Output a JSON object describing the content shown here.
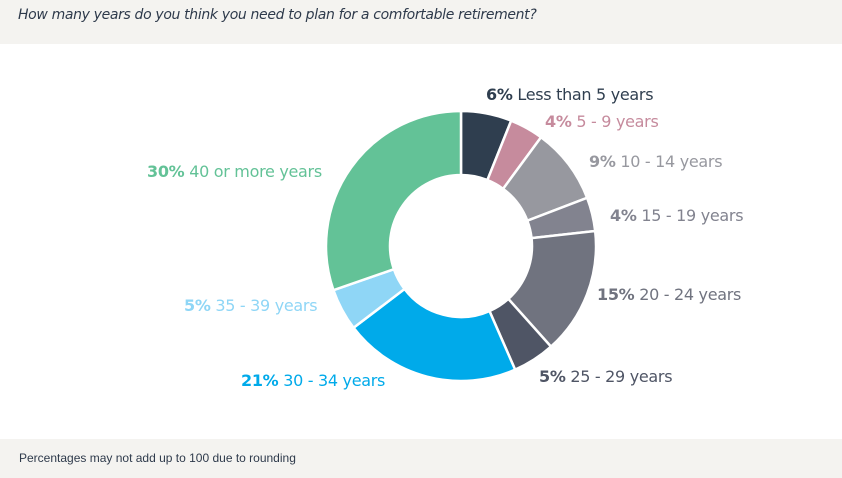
{
  "header": {
    "question": "How many years do you think you need to plan for a comfortable retirement?"
  },
  "footer": {
    "note": "Percentages may not add up to 100 due to rounding"
  },
  "chart_data": {
    "type": "pie",
    "variant": "donut",
    "title": "How many years do you think you need to plan for a comfortable retirement?",
    "start": "top",
    "direction": "clockwise",
    "slices": [
      {
        "pct_label": "6%",
        "label": "Less than 5 years",
        "value": 6,
        "color": "#2f3e4f",
        "label_color": "#2f3e4f"
      },
      {
        "pct_label": "4%",
        "label": "5 - 9 years",
        "value": 4,
        "color": "#c68b9d",
        "label_color": "#c68b9d"
      },
      {
        "pct_label": "9%",
        "label": "10 - 14 years",
        "value": 9,
        "color": "#97989f",
        "label_color": "#97989f"
      },
      {
        "pct_label": "4%",
        "label": "15 - 19 years",
        "value": 4,
        "color": "#82838f",
        "label_color": "#82838f"
      },
      {
        "pct_label": "15%",
        "label": "20 - 24 years",
        "value": 15,
        "color": "#70737f",
        "label_color": "#70737f"
      },
      {
        "pct_label": "5%",
        "label": "25 - 29 years",
        "value": 5,
        "color": "#4f5565",
        "label_color": "#4f5565"
      },
      {
        "pct_label": "21%",
        "label": "30 - 34 years",
        "value": 21,
        "color": "#00aaea",
        "label_color": "#00aaea"
      },
      {
        "pct_label": "5%",
        "label": "35 - 39 years",
        "value": 5,
        "color": "#8fd6f6",
        "label_color": "#8fd6f6"
      },
      {
        "pct_label": "30%",
        "label": "40 or more years",
        "value": 30,
        "color": "#63c297",
        "label_color": "#63c297"
      }
    ]
  }
}
